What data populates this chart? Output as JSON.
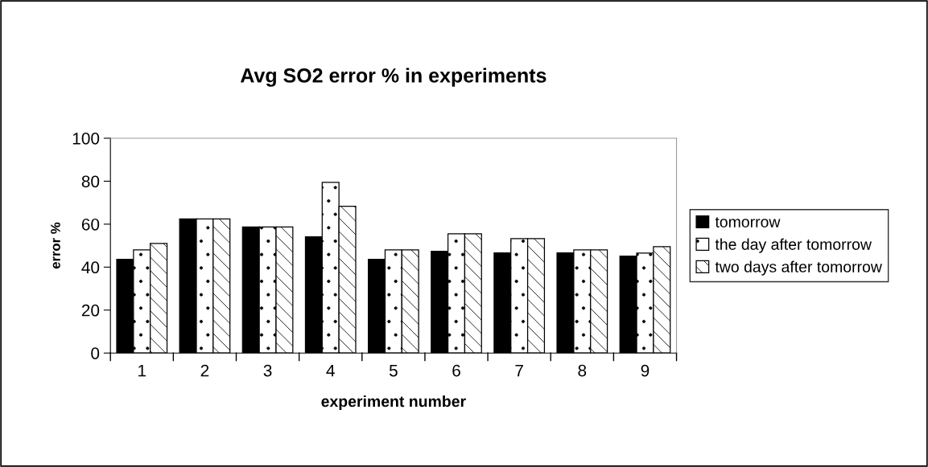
{
  "chart_data": {
    "type": "bar",
    "title": "Avg SO2 error % in experiments",
    "xlabel": "experiment number",
    "ylabel": "error %",
    "categories": [
      "1",
      "2",
      "3",
      "4",
      "5",
      "6",
      "7",
      "8",
      "9"
    ],
    "series": [
      {
        "name": "tomorrow",
        "color": "#000000",
        "values": [
          43.6,
          62.4,
          58.7,
          54.1,
          43.6,
          47.4,
          46.6,
          46.6,
          45.1
        ]
      },
      {
        "name": "the day after tomorrow",
        "color": "#ffffff",
        "values": [
          48.0,
          62.4,
          58.7,
          79.5,
          48.0,
          55.5,
          53.3,
          48.0,
          46.5
        ]
      },
      {
        "name": "two days after tomorrow",
        "color": "#ffffff",
        "values": [
          51.0,
          62.4,
          58.7,
          68.3,
          48.0,
          55.5,
          53.3,
          48.0,
          49.5
        ]
      }
    ],
    "ylim": [
      0,
      100
    ],
    "yticks": [
      0,
      20,
      40,
      60,
      80,
      100
    ],
    "grid": false,
    "legend": "right"
  }
}
